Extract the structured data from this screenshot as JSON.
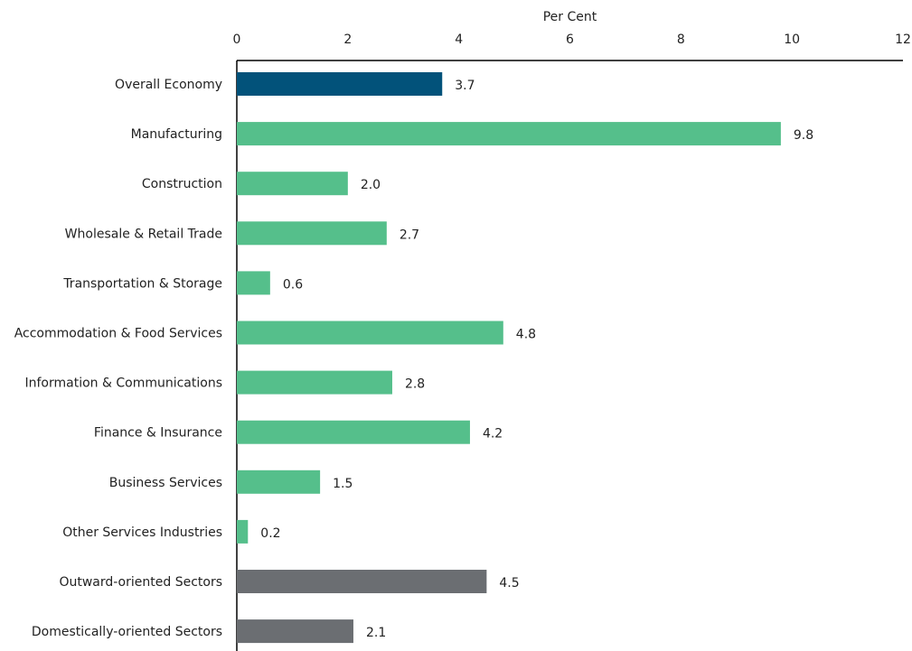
{
  "chart_data": {
    "type": "bar",
    "orientation": "horizontal",
    "xlabel": "Per Cent",
    "xlim": [
      0,
      12
    ],
    "xticks": [
      0,
      2,
      4,
      6,
      8,
      10,
      12
    ],
    "x_axis_position": "top",
    "grid": false,
    "legend": "none",
    "categories": [
      "Overall Economy",
      "Manufacturing",
      "Construction",
      "Wholesale & Retail Trade",
      "Transportation & Storage",
      "Accommodation & Food Services",
      "Information & Communications",
      "Finance & Insurance",
      "Business Services",
      "Other Services Industries",
      "Outward-oriented Sectors",
      "Domestically-oriented Sectors"
    ],
    "values": [
      3.7,
      9.8,
      2.0,
      2.7,
      0.6,
      4.8,
      2.8,
      4.2,
      1.5,
      0.2,
      4.5,
      2.1
    ],
    "value_labels": [
      "3.7",
      "9.8",
      "2.0",
      "2.7",
      "0.6",
      "4.8",
      "2.8",
      "4.2",
      "1.5",
      "0.2",
      "4.5",
      "2.1"
    ],
    "bar_colors": [
      "#02527a",
      "#55bf8b",
      "#55bf8b",
      "#55bf8b",
      "#55bf8b",
      "#55bf8b",
      "#55bf8b",
      "#55bf8b",
      "#55bf8b",
      "#55bf8b",
      "#6b6e72",
      "#6b6e72"
    ]
  }
}
